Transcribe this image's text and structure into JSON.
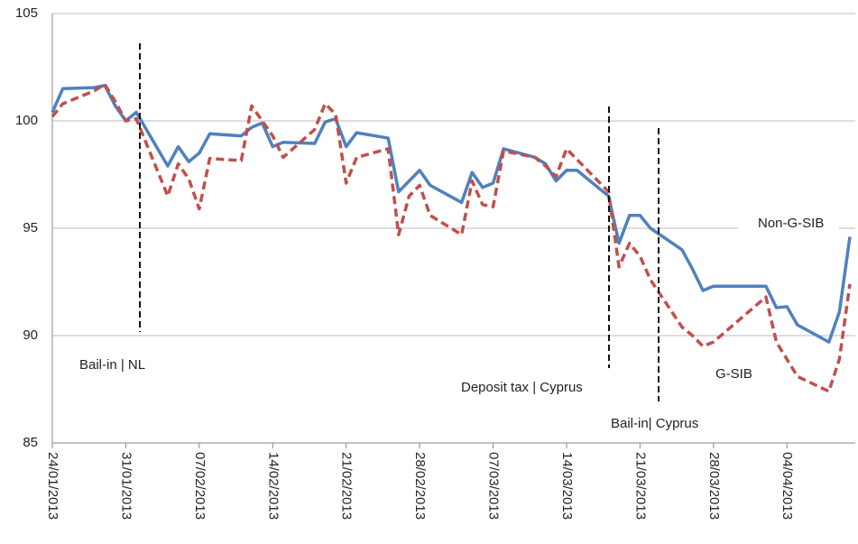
{
  "chart_data": {
    "type": "line",
    "x": [
      "24/01/2013",
      "25/01/2013",
      "28/01/2013",
      "29/01/2013",
      "30/01/2013",
      "31/01/2013",
      "01/02/2013",
      "04/02/2013",
      "05/02/2013",
      "06/02/2013",
      "07/02/2013",
      "08/02/2013",
      "11/02/2013",
      "12/02/2013",
      "13/02/2013",
      "14/02/2013",
      "15/02/2013",
      "18/02/2013",
      "19/02/2013",
      "20/02/2013",
      "21/02/2013",
      "22/02/2013",
      "25/02/2013",
      "26/02/2013",
      "27/02/2013",
      "28/02/2013",
      "01/03/2013",
      "04/03/2013",
      "05/03/2013",
      "06/03/2013",
      "07/03/2013",
      "08/03/2013",
      "11/03/2013",
      "12/03/2013",
      "13/03/2013",
      "14/03/2013",
      "15/03/2013",
      "18/03/2013",
      "19/03/2013",
      "20/03/2013",
      "21/03/2013",
      "22/03/2013",
      "25/03/2013",
      "26/03/2013",
      "27/03/2013",
      "28/03/2013",
      "02/04/2013",
      "03/04/2013",
      "04/04/2013",
      "05/04/2013",
      "08/04/2013",
      "09/04/2013",
      "10/04/2013"
    ],
    "series": [
      {
        "name": "Non-G-SIB",
        "color": "#4f81bd",
        "dash": false,
        "values": [
          100.4,
          101.5,
          101.55,
          101.65,
          100.7,
          100.0,
          100.4,
          97.9,
          98.8,
          98.1,
          98.5,
          99.4,
          99.3,
          99.7,
          99.9,
          98.8,
          99.0,
          98.95,
          99.95,
          100.1,
          98.8,
          99.45,
          99.2,
          96.7,
          97.2,
          97.7,
          97.0,
          96.2,
          97.6,
          96.9,
          97.1,
          98.7,
          98.3,
          98.0,
          97.2,
          97.7,
          97.7,
          96.5,
          94.3,
          95.6,
          95.6,
          95.0,
          94.0,
          93.1,
          92.1,
          92.3,
          92.3,
          91.3,
          91.35,
          90.5,
          89.7,
          91.1,
          94.6
        ]
      },
      {
        "name": "G-SIB",
        "color": "#c0504d",
        "dash": true,
        "values": [
          100.2,
          100.8,
          101.4,
          101.7,
          100.9,
          100.0,
          100.1,
          96.5,
          98.0,
          97.3,
          95.9,
          98.25,
          98.15,
          100.7,
          100.0,
          99.3,
          98.3,
          99.6,
          100.8,
          100.3,
          97.1,
          98.3,
          98.7,
          94.7,
          96.5,
          97.0,
          95.6,
          94.7,
          97.2,
          96.1,
          96.0,
          98.6,
          98.3,
          97.9,
          97.4,
          98.7,
          98.2,
          96.7,
          93.2,
          94.3,
          93.7,
          92.6,
          90.4,
          90.0,
          89.5,
          89.7,
          91.8,
          89.7,
          88.9,
          88.1,
          87.4,
          88.9,
          92.4
        ]
      }
    ],
    "annotations": [
      "Bail-in  | NL",
      "Deposit tax | Cyprus",
      "Bail-in| Cyprus"
    ],
    "xlim": [
      "24/01/2013",
      "10/04/2013"
    ],
    "xticks": [
      "24/01/2013",
      "31/01/2013",
      "07/02/2013",
      "14/02/2013",
      "21/02/2013",
      "28/02/2013",
      "07/03/2013",
      "14/03/2013",
      "21/03/2013",
      "28/03/2013",
      "04/04/2013"
    ],
    "ylim": [
      85,
      105
    ],
    "yticks": [
      85,
      90,
      95,
      100,
      105
    ],
    "grid": true
  }
}
